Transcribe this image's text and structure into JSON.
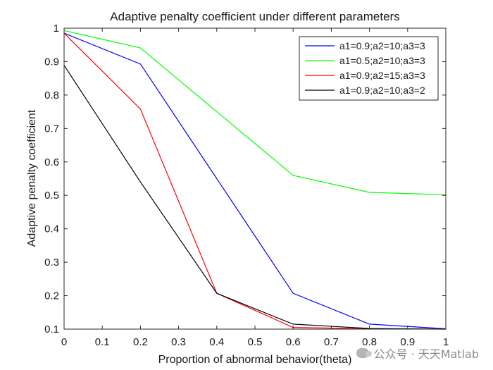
{
  "chart_data": {
    "type": "line",
    "title": "Adaptive penalty coefficient under different parameters",
    "xlabel": "Proportion of abnormal behavior(theta)",
    "ylabel": "Adaptive penalty coefficient",
    "xlim": [
      0,
      1
    ],
    "ylim": [
      0.1,
      1
    ],
    "xticks": [
      "0",
      "0.1",
      "0.2",
      "0.3",
      "0.4",
      "0.5",
      "0.6",
      "0.7",
      "0.8",
      "0.9",
      "1"
    ],
    "yticks": [
      "0.1",
      "0.2",
      "0.3",
      "0.4",
      "0.5",
      "0.6",
      "0.7",
      "0.8",
      "0.9",
      "1"
    ],
    "grid": false,
    "legend_position": "top-right",
    "x": [
      0,
      0.2,
      0.4,
      0.6,
      0.8,
      1.0
    ],
    "series": [
      {
        "name": "a1=0.9;a2=10;a3=3",
        "color": "#0000ff",
        "values": [
          0.985,
          0.893,
          0.55,
          0.207,
          0.115,
          0.101
        ]
      },
      {
        "name": "a1=0.5;a2=10;a3=3",
        "color": "#00ff00",
        "values": [
          0.993,
          0.941,
          0.75,
          0.56,
          0.509,
          0.502
        ]
      },
      {
        "name": "a1=0.9;a2=15;a3=3",
        "color": "#ff0000",
        "values": [
          0.985,
          0.758,
          0.207,
          0.105,
          0.101,
          0.1
        ]
      },
      {
        "name": "a1=0.9;a2=10;a3=2",
        "color": "#000000",
        "values": [
          0.889,
          0.54,
          0.207,
          0.115,
          0.102,
          0.1
        ]
      }
    ]
  },
  "watermark": {
    "text": "公众号 · 天天Matlab",
    "icon": "wechat-icon"
  }
}
